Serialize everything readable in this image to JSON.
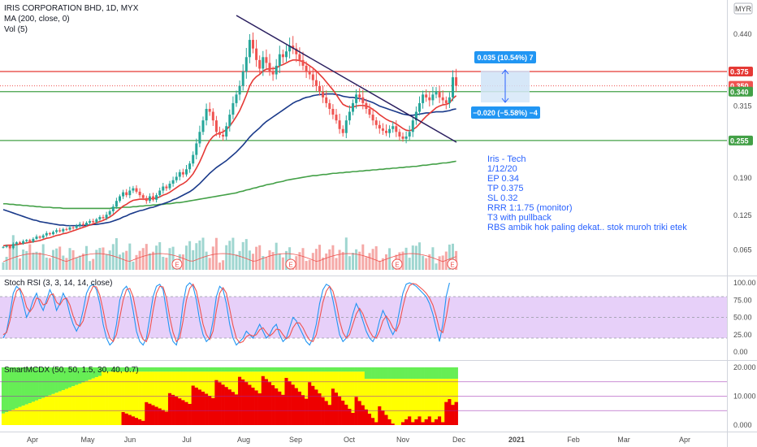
{
  "header": {
    "symbol": "IRIS CORPORATION BHD, 1D, MYX",
    "ma_label": "MA (200, close, 0)",
    "vol_label": "Vol (5)",
    "currency": "MYR"
  },
  "colors": {
    "up": "#26a69a",
    "down": "#ef5350",
    "trend": "#2a1f5f",
    "ma_red": "#e53935",
    "ma_blue": "#1a3a8a",
    "ma_green": "#43a047",
    "rsi_k": "#2196f3",
    "rsi_d": "#ef5350",
    "rsi_band": "#e1c4f7",
    "mcdx_green": "#66ee55",
    "mcdx_yellow": "#ffff00",
    "mcdx_red": "#ee0000"
  },
  "chart_data": [
    {
      "type": "candlestick",
      "name": "price",
      "y_ticks": [
        "0.440",
        "0.375",
        "0.350",
        "0.340",
        "0.315",
        "0.255",
        "0.190",
        "0.125",
        "0.065"
      ],
      "ylim": [
        0.04,
        0.47
      ],
      "x_ticks": [
        "Apr",
        "May",
        "Jun",
        "Jul",
        "Aug",
        "Sep",
        "Oct",
        "Nov",
        "Dec",
        "2021",
        "Feb",
        "Mar",
        "Apr"
      ],
      "horizontal_levels": [
        {
          "value": 0.375,
          "label": "0.375",
          "color": "#e53935"
        },
        {
          "value": 0.34,
          "label": "0.340",
          "color": "#43a047"
        },
        {
          "value": 0.255,
          "label": "0.255",
          "color": "#43a047"
        }
      ],
      "current_price": {
        "value": 0.35,
        "label": "0.350"
      },
      "trendline": {
        "from": {
          "date": "Jul 29",
          "price": 0.455
        },
        "to": {
          "date": "Nov 30",
          "price": 0.25
        }
      },
      "measure_up": {
        "label": "0.035 (10.54%) 7"
      },
      "measure_down": {
        "label": "−0.020 (−5.58%) −4"
      },
      "notes": [
        "Iris - Tech",
        "1/12/20",
        "EP 0.34",
        "TP 0.375",
        "SL 0.32",
        "RRR 1:1.75 (monitor)",
        "T3 with pullback",
        "RBS ambik hok paling dekat.. stok muroh triki etek"
      ],
      "earnings_markers": [
        "E",
        "E",
        "E",
        "E"
      ],
      "closes": [
        0.07,
        0.072,
        0.068,
        0.075,
        0.078,
        0.076,
        0.08,
        0.082,
        0.079,
        0.084,
        0.088,
        0.086,
        0.09,
        0.094,
        0.092,
        0.096,
        0.099,
        0.097,
        0.101,
        0.1,
        0.104,
        0.103,
        0.107,
        0.11,
        0.108,
        0.112,
        0.115,
        0.113,
        0.118,
        0.122,
        0.12,
        0.126,
        0.132,
        0.14,
        0.15,
        0.158,
        0.165,
        0.16,
        0.168,
        0.172,
        0.166,
        0.16,
        0.155,
        0.15,
        0.158,
        0.152,
        0.16,
        0.168,
        0.175,
        0.172,
        0.18,
        0.186,
        0.192,
        0.2,
        0.196,
        0.205,
        0.215,
        0.23,
        0.25,
        0.27,
        0.29,
        0.31,
        0.305,
        0.29,
        0.27,
        0.265,
        0.262,
        0.28,
        0.3,
        0.32,
        0.335,
        0.35,
        0.375,
        0.4,
        0.43,
        0.415,
        0.395,
        0.38,
        0.4,
        0.39,
        0.375,
        0.37,
        0.385,
        0.405,
        0.4,
        0.41,
        0.42,
        0.415,
        0.405,
        0.395,
        0.385,
        0.375,
        0.37,
        0.36,
        0.35,
        0.34,
        0.33,
        0.32,
        0.31,
        0.3,
        0.29,
        0.275,
        0.268,
        0.29,
        0.305,
        0.32,
        0.335,
        0.33,
        0.32,
        0.31,
        0.3,
        0.29,
        0.282,
        0.276,
        0.272,
        0.268,
        0.275,
        0.28,
        0.27,
        0.262,
        0.258,
        0.262,
        0.27,
        0.29,
        0.305,
        0.32,
        0.335,
        0.33,
        0.325,
        0.335,
        0.34,
        0.33,
        0.325,
        0.32,
        0.33,
        0.365,
        0.35
      ],
      "ma_red": [
        0.072,
        0.073,
        0.073,
        0.073,
        0.074,
        0.075,
        0.076,
        0.077,
        0.078,
        0.079,
        0.08,
        0.081,
        0.083,
        0.085,
        0.086,
        0.088,
        0.09,
        0.091,
        0.093,
        0.094,
        0.096,
        0.098,
        0.1,
        0.102,
        0.104,
        0.106,
        0.108,
        0.11,
        0.112,
        0.114,
        0.116,
        0.119,
        0.122,
        0.126,
        0.131,
        0.136,
        0.141,
        0.144,
        0.148,
        0.151,
        0.152,
        0.153,
        0.153,
        0.153,
        0.154,
        0.154,
        0.155,
        0.157,
        0.16,
        0.162,
        0.165,
        0.169,
        0.173,
        0.177,
        0.18,
        0.184,
        0.19,
        0.197,
        0.207,
        0.218,
        0.231,
        0.245,
        0.255,
        0.262,
        0.266,
        0.268,
        0.27,
        0.274,
        0.28,
        0.288,
        0.297,
        0.307,
        0.32,
        0.334,
        0.35,
        0.36,
        0.366,
        0.37,
        0.376,
        0.379,
        0.38,
        0.38,
        0.381,
        0.385,
        0.387,
        0.39,
        0.393,
        0.395,
        0.395,
        0.394,
        0.392,
        0.389,
        0.385,
        0.381,
        0.376,
        0.37,
        0.364,
        0.357,
        0.35,
        0.343,
        0.335,
        0.326,
        0.318,
        0.315,
        0.313,
        0.313,
        0.315,
        0.316,
        0.316,
        0.315,
        0.313,
        0.309,
        0.305,
        0.3,
        0.296,
        0.292,
        0.289,
        0.287,
        0.284,
        0.28,
        0.276,
        0.273,
        0.272,
        0.274,
        0.278,
        0.284,
        0.291,
        0.297,
        0.302,
        0.307,
        0.312,
        0.315,
        0.317,
        0.318,
        0.32,
        0.328,
        0.333
      ],
      "ma_blue": [
        0.135,
        0.133,
        0.131,
        0.129,
        0.127,
        0.125,
        0.123,
        0.121,
        0.119,
        0.117,
        0.116,
        0.114,
        0.113,
        0.112,
        0.111,
        0.11,
        0.109,
        0.108,
        0.108,
        0.107,
        0.107,
        0.107,
        0.107,
        0.107,
        0.107,
        0.108,
        0.108,
        0.109,
        0.109,
        0.11,
        0.111,
        0.112,
        0.113,
        0.115,
        0.117,
        0.119,
        0.122,
        0.124,
        0.127,
        0.129,
        0.131,
        0.133,
        0.134,
        0.136,
        0.138,
        0.139,
        0.141,
        0.143,
        0.145,
        0.147,
        0.149,
        0.152,
        0.154,
        0.157,
        0.16,
        0.163,
        0.166,
        0.17,
        0.175,
        0.18,
        0.186,
        0.192,
        0.198,
        0.203,
        0.208,
        0.212,
        0.216,
        0.22,
        0.225,
        0.23,
        0.235,
        0.241,
        0.247,
        0.254,
        0.261,
        0.267,
        0.272,
        0.277,
        0.283,
        0.288,
        0.292,
        0.296,
        0.3,
        0.304,
        0.308,
        0.312,
        0.316,
        0.32,
        0.323,
        0.325,
        0.328,
        0.33,
        0.331,
        0.333,
        0.334,
        0.335,
        0.335,
        0.336,
        0.336,
        0.336,
        0.335,
        0.334,
        0.332,
        0.331,
        0.33,
        0.33,
        0.329,
        0.328,
        0.327,
        0.325,
        0.323,
        0.321,
        0.318,
        0.315,
        0.313,
        0.311,
        0.309,
        0.307,
        0.305,
        0.303,
        0.301,
        0.3,
        0.299,
        0.299,
        0.3,
        0.301,
        0.302,
        0.303,
        0.303,
        0.304,
        0.305,
        0.305,
        0.305,
        0.306,
        0.307,
        0.309,
        0.31
      ],
      "ma_green": [
        0.145,
        0.145,
        0.144,
        0.144,
        0.143,
        0.143,
        0.142,
        0.142,
        0.141,
        0.141,
        0.14,
        0.14,
        0.139,
        0.139,
        0.139,
        0.138,
        0.138,
        0.138,
        0.137,
        0.137,
        0.137,
        0.137,
        0.137,
        0.137,
        0.137,
        0.137,
        0.137,
        0.137,
        0.137,
        0.137,
        0.137,
        0.137,
        0.137,
        0.138,
        0.138,
        0.138,
        0.139,
        0.139,
        0.139,
        0.14,
        0.14,
        0.141,
        0.141,
        0.142,
        0.142,
        0.143,
        0.143,
        0.144,
        0.144,
        0.145,
        0.145,
        0.146,
        0.147,
        0.147,
        0.148,
        0.149,
        0.15,
        0.151,
        0.152,
        0.153,
        0.154,
        0.155,
        0.156,
        0.157,
        0.158,
        0.159,
        0.16,
        0.161,
        0.162,
        0.163,
        0.164,
        0.166,
        0.167,
        0.169,
        0.17,
        0.172,
        0.173,
        0.175,
        0.176,
        0.178,
        0.179,
        0.18,
        0.182,
        0.183,
        0.184,
        0.186,
        0.187,
        0.188,
        0.189,
        0.19,
        0.191,
        0.192,
        0.193,
        0.194,
        0.194,
        0.195,
        0.196,
        0.196,
        0.197,
        0.198,
        0.198,
        0.199,
        0.199,
        0.2,
        0.2,
        0.201,
        0.201,
        0.202,
        0.202,
        0.203,
        0.203,
        0.204,
        0.204,
        0.205,
        0.205,
        0.206,
        0.206,
        0.207,
        0.207,
        0.208,
        0.208,
        0.209,
        0.209,
        0.21,
        0.21,
        0.211,
        0.212,
        0.212,
        0.213,
        0.214,
        0.214,
        0.215,
        0.216,
        0.216,
        0.217,
        0.218,
        0.219
      ]
    },
    {
      "type": "oscillator",
      "name": "Stoch RSI",
      "title": "Stoch RSI (3, 3, 14, 14, close)",
      "y_ticks": [
        "100.00",
        "75.00",
        "50.00",
        "25.00",
        "0.00"
      ],
      "ylim": [
        0,
        100
      ],
      "band": [
        20,
        80
      ],
      "k": [
        20,
        30,
        55,
        85,
        95,
        90,
        70,
        50,
        60,
        75,
        85,
        70,
        60,
        75,
        90,
        80,
        60,
        70,
        85,
        75,
        55,
        40,
        30,
        40,
        60,
        85,
        95,
        98,
        90,
        70,
        40,
        20,
        10,
        15,
        40,
        75,
        90,
        95,
        85,
        60,
        30,
        15,
        10,
        20,
        50,
        80,
        95,
        98,
        90,
        60,
        30,
        15,
        10,
        30,
        70,
        95,
        100,
        95,
        75,
        45,
        25,
        15,
        20,
        45,
        80,
        95,
        90,
        70,
        40,
        20,
        10,
        15,
        20,
        30,
        25,
        20,
        30,
        40,
        30,
        20,
        25,
        35,
        40,
        25,
        15,
        20,
        35,
        50,
        45,
        35,
        25,
        15,
        10,
        20,
        40,
        70,
        90,
        98,
        95,
        75,
        50,
        25,
        15,
        20,
        35,
        55,
        70,
        60,
        45,
        30,
        20,
        15,
        25,
        45,
        60,
        50,
        35,
        25,
        35,
        60,
        85,
        98,
        100,
        98,
        95,
        90,
        85,
        80,
        70,
        55,
        35,
        15,
        40,
        80,
        100
      ],
      "d": [
        25,
        28,
        45,
        70,
        88,
        92,
        82,
        65,
        58,
        65,
        78,
        76,
        68,
        70,
        82,
        84,
        72,
        68,
        76,
        78,
        68,
        52,
        40,
        37,
        45,
        65,
        85,
        95,
        94,
        82,
        60,
        35,
        20,
        15,
        25,
        50,
        75,
        90,
        92,
        80,
        55,
        30,
        18,
        15,
        30,
        60,
        85,
        95,
        94,
        78,
        50,
        28,
        15,
        20,
        45,
        75,
        92,
        98,
        88,
        65,
        40,
        25,
        18,
        30,
        60,
        85,
        93,
        85,
        62,
        38,
        20,
        13,
        15,
        22,
        25,
        23,
        25,
        32,
        35,
        28,
        23,
        27,
        33,
        32,
        25,
        19,
        23,
        35,
        42,
        42,
        35,
        25,
        17,
        15,
        25,
        48,
        72,
        88,
        95,
        88,
        70,
        45,
        28,
        20,
        25,
        40,
        55,
        63,
        55,
        42,
        30,
        22,
        20,
        30,
        45,
        52,
        45,
        35,
        30,
        42,
        65,
        85,
        96,
        99,
        98,
        94,
        90,
        85,
        78,
        68,
        52,
        32,
        28,
        50,
        78
      ]
    },
    {
      "type": "stacked_area",
      "name": "SmartMCDX",
      "title": "SmartMCDX (50, 50, 1.5, 30, 40, 0.7)",
      "y_ticks": [
        "20.000",
        "10.000",
        "0.000"
      ],
      "ylim": [
        0,
        20
      ],
      "reference_lines": [
        15,
        10,
        5
      ]
    }
  ]
}
